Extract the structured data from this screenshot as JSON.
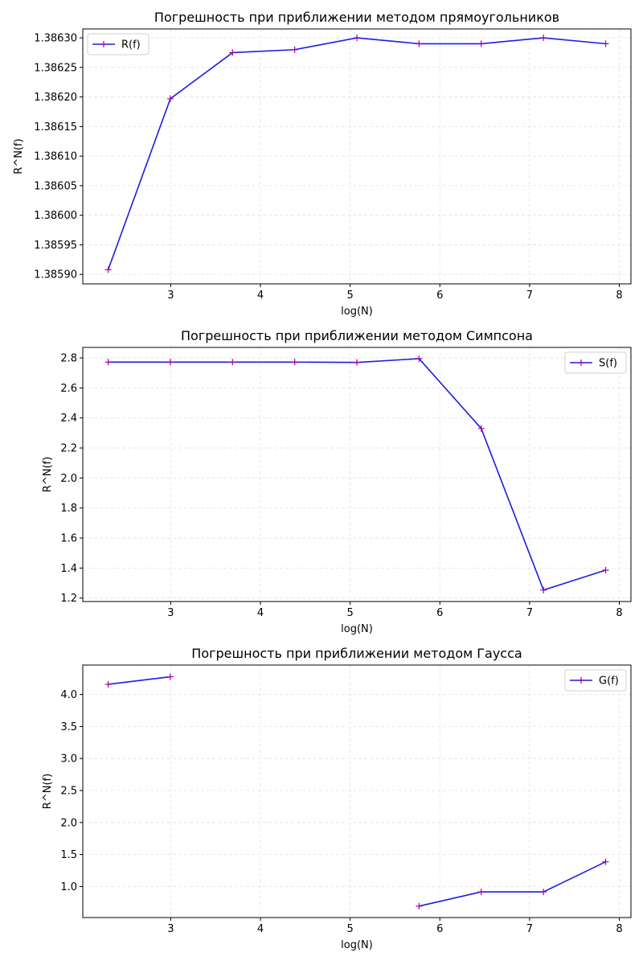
{
  "chart_data": [
    {
      "type": "line",
      "title": "Погрешность при приближении методом прямоугольников",
      "xlabel": "log(N)",
      "ylabel": "R^N(f)",
      "xlim": [
        2.02,
        8.13
      ],
      "ylim": [
        1.385884,
        1.386315
      ],
      "xticks": [
        3,
        4,
        5,
        6,
        7,
        8
      ],
      "xtick_labels": [
        "3",
        "4",
        "5",
        "6",
        "7",
        "8"
      ],
      "yticks": [
        1.3859,
        1.38595,
        1.386,
        1.38605,
        1.3861,
        1.38615,
        1.3862,
        1.38625,
        1.3863
      ],
      "ytick_labels": [
        "1.38590",
        "1.38595",
        "1.38600",
        "1.38605",
        "1.38610",
        "1.38615",
        "1.38620",
        "1.38625",
        "1.38630"
      ],
      "grid": true,
      "legend_position": "upper-left",
      "line_color": "#1c1ce6",
      "marker_color": "#a4009e",
      "series": [
        {
          "name": "R(f)",
          "x": [
            2.303,
            2.996,
            3.689,
            4.382,
            5.075,
            5.768,
            6.461,
            7.155,
            7.848
          ],
          "y": [
            1.385908,
            1.386197,
            1.386275,
            1.38628,
            1.3863,
            1.38629,
            1.38629,
            1.3863,
            1.38629
          ]
        }
      ]
    },
    {
      "type": "line",
      "title": "Погрешность при приближении методом Симпсона",
      "xlabel": "log(N)",
      "ylabel": "R^N(f)",
      "xlim": [
        2.02,
        8.13
      ],
      "ylim": [
        1.177,
        2.87
      ],
      "xticks": [
        3,
        4,
        5,
        6,
        7,
        8
      ],
      "xtick_labels": [
        "3",
        "4",
        "5",
        "6",
        "7",
        "8"
      ],
      "yticks": [
        1.2,
        1.4,
        1.6,
        1.8,
        2.0,
        2.2,
        2.4,
        2.6,
        2.8
      ],
      "ytick_labels": [
        "1.2",
        "1.4",
        "1.6",
        "1.8",
        "2.0",
        "2.2",
        "2.4",
        "2.6",
        "2.8"
      ],
      "grid": true,
      "legend_position": "upper-right",
      "line_color": "#1c1ce6",
      "marker_color": "#a4009e",
      "series": [
        {
          "name": "S(f)",
          "x": [
            2.303,
            2.996,
            3.689,
            4.382,
            5.075,
            5.768,
            6.461,
            7.155,
            7.848
          ],
          "y": [
            2.772,
            2.772,
            2.772,
            2.772,
            2.77,
            2.795,
            2.33,
            1.253,
            1.386
          ]
        }
      ]
    },
    {
      "type": "line",
      "title": "Погрешность при приближении методом Гаусса",
      "xlabel": "log(N)",
      "ylabel": "R^N(f)",
      "xlim": [
        2.02,
        8.13
      ],
      "ylim": [
        0.515,
        4.46
      ],
      "xticks": [
        3,
        4,
        5,
        6,
        7,
        8
      ],
      "xtick_labels": [
        "3",
        "4",
        "5",
        "6",
        "7",
        "8"
      ],
      "yticks": [
        1.0,
        1.5,
        2.0,
        2.5,
        3.0,
        3.5,
        4.0
      ],
      "ytick_labels": [
        "1.0",
        "1.5",
        "2.0",
        "2.5",
        "3.0",
        "3.5",
        "4.0"
      ],
      "grid": true,
      "legend_position": "upper-right",
      "line_color": "#1c1ce6",
      "marker_color": "#a4009e",
      "series": [
        {
          "name": "G(f)",
          "x": [
            2.303,
            2.996,
            3.689,
            4.382,
            5.075,
            5.768,
            6.461,
            7.155,
            7.848
          ],
          "y": [
            4.159,
            4.277,
            null,
            null,
            null,
            0.693,
            0.916,
            0.916,
            1.386
          ]
        }
      ]
    }
  ]
}
